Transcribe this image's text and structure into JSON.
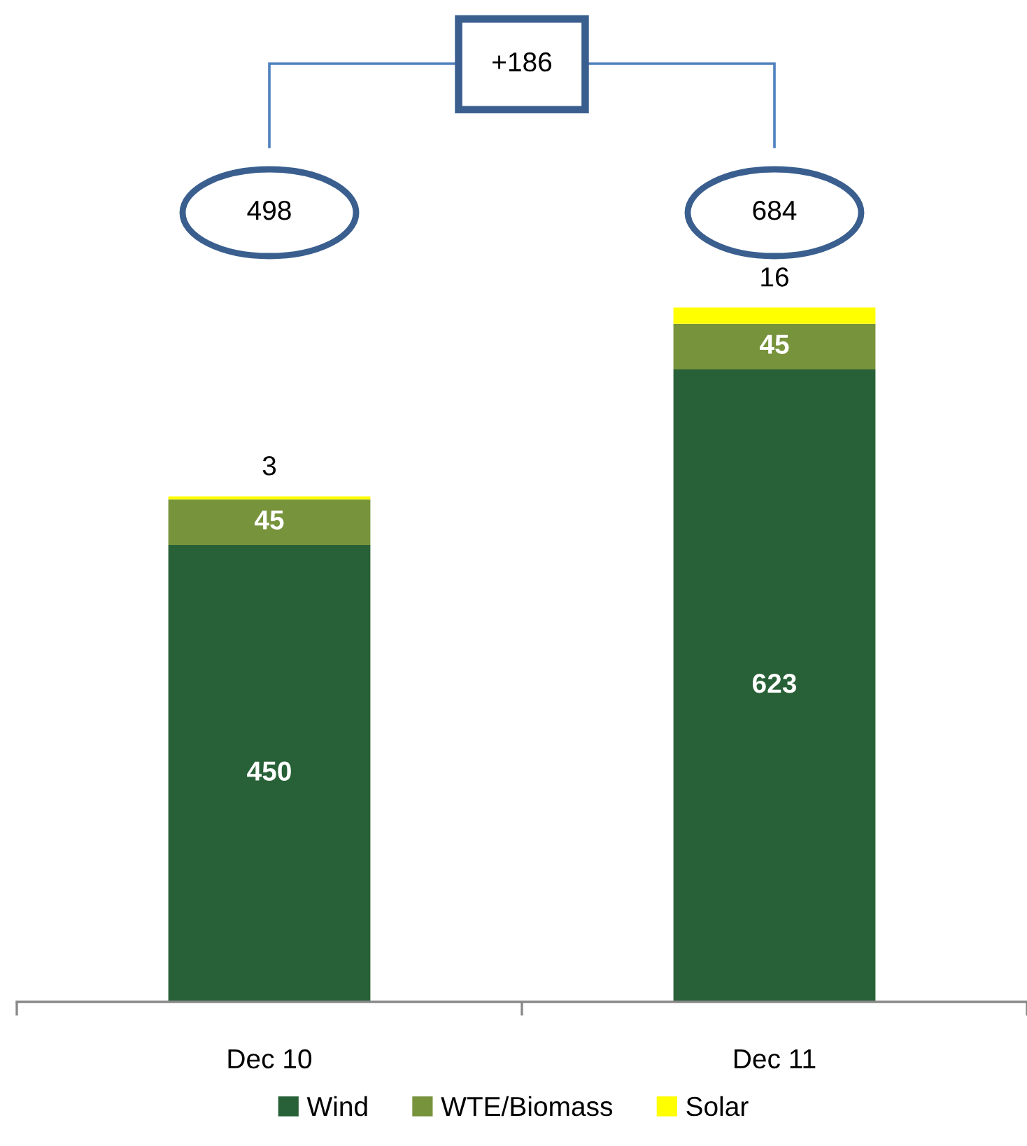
{
  "chart_data": {
    "type": "bar",
    "stacked": true,
    "data_labels": true,
    "legend": "bottom",
    "categories": [
      "Dec 10",
      "Dec 11"
    ],
    "series": [
      {
        "name": "Wind",
        "color": "#286137",
        "values": [
          450,
          623
        ]
      },
      {
        "name": "WTE/Biomass",
        "color": "#77933c",
        "values": [
          45,
          45
        ]
      },
      {
        "name": "Solar",
        "color": "#ffff00",
        "values": [
          3,
          16
        ]
      }
    ],
    "annotations": [
      "498",
      "684",
      "+186"
    ]
  }
}
